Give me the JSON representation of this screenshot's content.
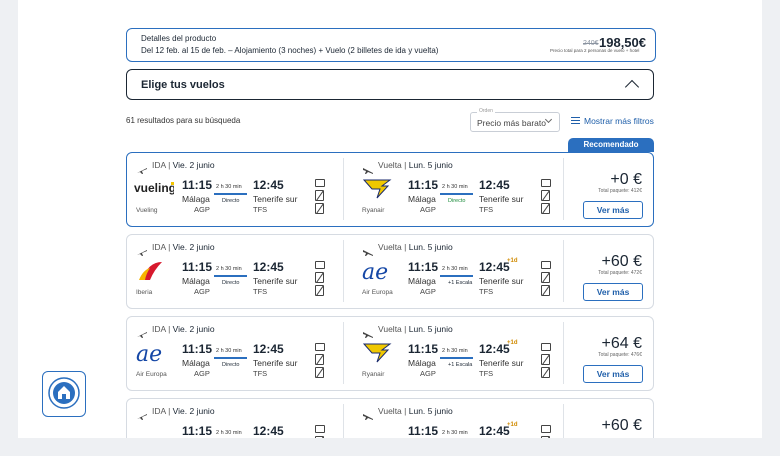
{
  "product": {
    "title": "Detalles del producto",
    "details": "Del 12 feb. al 15 de feb. – Alojamiento (3 noches) + Vuelo (2 billetes de ida y vuelta)",
    "old_price": "240€",
    "price": "198,50€",
    "price_note": "Precio total para 2 personas de vuelo + hotel"
  },
  "flights_header": {
    "label": "Elige tus vuelos"
  },
  "results_text": "61 resultados para su búsqueda",
  "sort": {
    "caption": "Orden",
    "value": "Precio más barato"
  },
  "filters_label": "Mostrar más filtros",
  "recommended_label": "Recomendado",
  "colors": {
    "accent": "#2b6fbf",
    "direct_green": "#1a8a3a",
    "plus_day": "#d08a00"
  },
  "cards": [
    {
      "out": {
        "label": "IDA",
        "date": "Vie. 2 junio",
        "dep_time": "11:15",
        "dep_city": "Málaga",
        "dep_code": "AGP",
        "duration": "2 h 30 min",
        "stops": "Directo",
        "arr_time": "12:45",
        "arr_plus": "",
        "arr_city": "Tenerife sur",
        "arr_code": "TFS",
        "airline": "Vueling"
      },
      "ret": {
        "label": "Vuelta",
        "date": "Lun. 5 junio",
        "dep_time": "11:15",
        "dep_city": "Málaga",
        "dep_code": "AGP",
        "duration": "2 h 30 min",
        "stops": "Directo",
        "arr_time": "12:45",
        "arr_plus": "",
        "arr_city": "Tenerife sur",
        "arr_code": "TFS",
        "airline": "Ryanair"
      },
      "price_delta": "+0 €",
      "total": "Total paquete: 412€",
      "button": "Ver más"
    },
    {
      "out": {
        "label": "IDA",
        "date": "Vie. 2 junio",
        "dep_time": "11:15",
        "dep_city": "Málaga",
        "dep_code": "AGP",
        "duration": "2 h 30 min",
        "stops": "Directo",
        "arr_time": "12:45",
        "arr_plus": "",
        "arr_city": "Tenerife sur",
        "arr_code": "TFS",
        "airline": "Iberia"
      },
      "ret": {
        "label": "Vuelta",
        "date": "Lun. 5 junio",
        "dep_time": "11:15",
        "dep_city": "Málaga",
        "dep_code": "AGP",
        "duration": "2 h 30 min",
        "stops": "+1 Escala",
        "arr_time": "12:45",
        "arr_plus": "+1d",
        "arr_city": "Tenerife sur",
        "arr_code": "TFS",
        "airline": "Air Europa"
      },
      "price_delta": "+60 €",
      "total": "Total paquete: 472€",
      "button": "Ver más"
    },
    {
      "out": {
        "label": "IDA",
        "date": "Vie. 2 junio",
        "dep_time": "11:15",
        "dep_city": "Málaga",
        "dep_code": "AGP",
        "duration": "2 h 30 min",
        "stops": "Directo",
        "arr_time": "12:45",
        "arr_plus": "",
        "arr_city": "Tenerife sur",
        "arr_code": "TFS",
        "airline": "Air Europa"
      },
      "ret": {
        "label": "Vuelta",
        "date": "Lun. 5 junio",
        "dep_time": "11:15",
        "dep_city": "Málaga",
        "dep_code": "AGP",
        "duration": "2 h 30 min",
        "stops": "+1 Escala",
        "arr_time": "12:45",
        "arr_plus": "+1d",
        "arr_city": "Tenerife sur",
        "arr_code": "TFS",
        "airline": "Ryanair"
      },
      "price_delta": "+64 €",
      "total": "Total paquete: 476€",
      "button": "Ver más"
    },
    {
      "out": {
        "label": "IDA",
        "date": "Vie. 2 junio",
        "dep_time": "11:15",
        "duration": "2 h 30 min",
        "arr_time": "12:45"
      },
      "ret": {
        "label": "Vuelta",
        "date": "Lun. 5 junio",
        "dep_time": "11:15",
        "duration": "2 h 30 min",
        "arr_time": "12:45",
        "arr_plus": "+1d"
      },
      "price_delta": "+60 €"
    }
  ]
}
